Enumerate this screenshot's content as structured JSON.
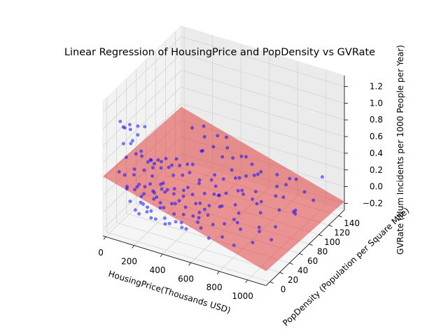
{
  "chart_data": {
    "type": "scatter3d",
    "title": "Linear Regression of HousingPrice and PopDensity vs GVRate",
    "xlabel": "HousingPrice(Thousands USD)",
    "ylabel": "PopDensity (Population per Square Mile)",
    "zlabel": "GVRate (Num Incidents per 1000 People per Year)",
    "xlim": [
      -20,
      1130
    ],
    "ylim": [
      -8,
      152
    ],
    "zlim": [
      -0.28,
      1.33
    ],
    "x_ticks": [
      0,
      200,
      400,
      600,
      800,
      1000
    ],
    "y_ticks": [
      0,
      20,
      40,
      60,
      80,
      100,
      120,
      140
    ],
    "z_ticks": [
      -0.2,
      0.0,
      0.2,
      0.4,
      0.6,
      0.8,
      1.0,
      1.2
    ],
    "z_tick_labels": [
      "−0.2",
      "0.0",
      "0.2",
      "0.4",
      "0.6",
      "0.8",
      "1.0",
      "1.2"
    ],
    "grid": true,
    "series": [
      {
        "type": "scatter",
        "color": "#0000ff",
        "alpha": 0.5,
        "points": [
          [
            40,
            10,
            1.02
          ],
          [
            45,
            18,
            0.9
          ],
          [
            55,
            12,
            0.95
          ],
          [
            60,
            25,
            0.85
          ],
          [
            70,
            8,
            0.78
          ],
          [
            80,
            20,
            0.72
          ],
          [
            90,
            15,
            0.98
          ],
          [
            95,
            30,
            0.88
          ],
          [
            100,
            5,
            0.65
          ],
          [
            110,
            22,
            0.6
          ],
          [
            120,
            12,
            0.82
          ],
          [
            60,
            40,
            0.7
          ],
          [
            130,
            28,
            0.55
          ],
          [
            140,
            10,
            0.5
          ],
          [
            150,
            35,
            0.45
          ],
          [
            75,
            50,
            0.75
          ],
          [
            160,
            18,
            0.68
          ],
          [
            170,
            42,
            0.4
          ],
          [
            180,
            8,
            0.35
          ],
          [
            190,
            30,
            0.52
          ],
          [
            50,
            5,
            0.45
          ],
          [
            65,
            12,
            0.38
          ],
          [
            85,
            25,
            0.32
          ],
          [
            95,
            8,
            0.28
          ],
          [
            105,
            40,
            0.3
          ],
          [
            115,
            55,
            0.25
          ],
          [
            125,
            15,
            0.22
          ],
          [
            135,
            48,
            0.2
          ],
          [
            145,
            30,
            0.18
          ],
          [
            155,
            60,
            0.24
          ],
          [
            165,
            22,
            0.15
          ],
          [
            175,
            70,
            0.2
          ],
          [
            185,
            35,
            0.12
          ],
          [
            195,
            12,
            0.1
          ],
          [
            205,
            50,
            0.14
          ],
          [
            215,
            28,
            0.08
          ],
          [
            225,
            65,
            0.16
          ],
          [
            235,
            8,
            0.05
          ],
          [
            245,
            42,
            0.1
          ],
          [
            255,
            75,
            0.12
          ],
          [
            70,
            15,
            0.2
          ],
          [
            90,
            30,
            0.15
          ],
          [
            110,
            10,
            0.1
          ],
          [
            130,
            45,
            0.12
          ],
          [
            150,
            20,
            0.05
          ],
          [
            170,
            55,
            0.08
          ],
          [
            190,
            5,
            0.02
          ],
          [
            210,
            35,
            0.06
          ],
          [
            230,
            18,
            0.0
          ],
          [
            250,
            60,
            0.04
          ],
          [
            80,
            60,
            0.3
          ],
          [
            100,
            70,
            0.25
          ],
          [
            120,
            80,
            0.22
          ],
          [
            140,
            65,
            0.28
          ],
          [
            160,
            90,
            0.18
          ],
          [
            180,
            75,
            0.2
          ],
          [
            200,
            85,
            0.15
          ],
          [
            220,
            95,
            0.12
          ],
          [
            240,
            100,
            0.1
          ],
          [
            260,
            88,
            0.08
          ],
          [
            270,
            25,
            0.02
          ],
          [
            280,
            50,
            0.05
          ],
          [
            290,
            10,
            -0.02
          ],
          [
            300,
            40,
            0.0
          ],
          [
            310,
            70,
            0.03
          ],
          [
            320,
            20,
            -0.05
          ],
          [
            330,
            55,
            0.02
          ],
          [
            340,
            85,
            0.05
          ],
          [
            350,
            30,
            -0.04
          ],
          [
            360,
            65,
            0.0
          ],
          [
            370,
            15,
            -0.06
          ],
          [
            380,
            45,
            -0.03
          ],
          [
            390,
            95,
            0.02
          ],
          [
            400,
            35,
            -0.05
          ],
          [
            410,
            75,
            -0.02
          ],
          [
            420,
            25,
            -0.08
          ],
          [
            430,
            60,
            -0.04
          ],
          [
            440,
            105,
            0.0
          ],
          [
            450,
            40,
            -0.07
          ],
          [
            460,
            80,
            -0.03
          ],
          [
            470,
            20,
            -0.1
          ],
          [
            480,
            55,
            -0.06
          ],
          [
            490,
            115,
            -0.02
          ],
          [
            500,
            35,
            -0.09
          ],
          [
            510,
            90,
            -0.05
          ],
          [
            520,
            50,
            -0.08
          ],
          [
            530,
            125,
            -0.03
          ],
          [
            540,
            30,
            -0.11
          ],
          [
            550,
            70,
            -0.07
          ],
          [
            560,
            100,
            -0.05
          ],
          [
            120,
            30,
            0.05
          ],
          [
            140,
            12,
            0.0
          ],
          [
            160,
            45,
            0.03
          ],
          [
            180,
            25,
            -0.02
          ],
          [
            200,
            60,
            0.0
          ],
          [
            220,
            40,
            -0.03
          ],
          [
            240,
            15,
            -0.06
          ],
          [
            260,
            35,
            -0.04
          ],
          [
            280,
            70,
            -0.02
          ],
          [
            300,
            55,
            -0.05
          ],
          [
            320,
            90,
            -0.03
          ],
          [
            340,
            15,
            -0.08
          ],
          [
            360,
            110,
            -0.02
          ],
          [
            380,
            25,
            -0.09
          ],
          [
            400,
            60,
            -0.06
          ],
          [
            420,
            95,
            -0.04
          ],
          [
            440,
            20,
            -0.1
          ],
          [
            460,
            50,
            -0.08
          ],
          [
            480,
            85,
            -0.06
          ],
          [
            500,
            120,
            -0.04
          ],
          [
            590,
            40,
            -0.1
          ],
          [
            610,
            80,
            -0.08
          ],
          [
            630,
            20,
            -0.13
          ],
          [
            650,
            110,
            -0.07
          ],
          [
            670,
            60,
            -0.11
          ],
          [
            690,
            30,
            -0.14
          ],
          [
            710,
            95,
            -0.1
          ],
          [
            730,
            130,
            -0.08
          ],
          [
            750,
            50,
            -0.13
          ],
          [
            770,
            85,
            -0.12
          ],
          [
            790,
            25,
            -0.16
          ],
          [
            810,
            120,
            -0.11
          ],
          [
            830,
            65,
            -0.15
          ],
          [
            850,
            100,
            -0.13
          ],
          [
            870,
            40,
            -0.17
          ],
          [
            890,
            140,
            -0.12
          ],
          [
            910,
            75,
            -0.16
          ],
          [
            930,
            110,
            -0.15
          ],
          [
            950,
            55,
            -0.18
          ],
          [
            970,
            135,
            -0.15
          ],
          [
            620,
            45,
            0.1
          ],
          [
            700,
            70,
            0.15
          ],
          [
            780,
            35,
            0.05
          ],
          [
            860,
            90,
            0.1
          ],
          [
            560,
            20,
            0.08
          ],
          [
            640,
            110,
            0.12
          ],
          [
            720,
            55,
            0.02
          ],
          [
            820,
            130,
            0.06
          ],
          [
            900,
            45,
            -0.05
          ],
          [
            980,
            95,
            -0.08
          ],
          [
            420,
            130,
            0.1
          ],
          [
            520,
            140,
            0.02
          ],
          [
            380,
            120,
            0.15
          ],
          [
            300,
            125,
            0.2
          ],
          [
            340,
            140,
            0.25
          ],
          [
            460,
            145,
            0.05
          ],
          [
            250,
            115,
            0.18
          ],
          [
            600,
            135,
            0.0
          ],
          [
            680,
            145,
            -0.05
          ],
          [
            760,
            140,
            -0.1
          ],
          [
            1000,
            20,
            0.5
          ],
          [
            1050,
            130,
            0.2
          ],
          [
            350,
            5,
            0.4
          ],
          [
            450,
            110,
            0.35
          ],
          [
            550,
            90,
            0.25
          ],
          [
            650,
            15,
            0.3
          ],
          [
            800,
            60,
            0.2
          ],
          [
            900,
            120,
            0.15
          ],
          [
            700,
            100,
            0.22
          ],
          [
            1020,
            80,
            0.05
          ],
          [
            180,
            140,
            0.3
          ],
          [
            220,
            130,
            0.25
          ],
          [
            260,
            145,
            0.2
          ],
          [
            150,
            125,
            0.35
          ],
          [
            310,
            100,
            0.3
          ],
          [
            410,
            15,
            0.2
          ],
          [
            480,
            130,
            0.15
          ],
          [
            560,
            60,
            0.12
          ],
          [
            640,
            85,
            0.08
          ],
          [
            740,
            20,
            0.1
          ]
        ]
      },
      {
        "type": "surface",
        "color": "#e03030",
        "alpha": 0.5,
        "plane": {
          "intercept": 0.42,
          "coef_x": -0.00047,
          "coef_y": -0.00045
        }
      }
    ]
  }
}
